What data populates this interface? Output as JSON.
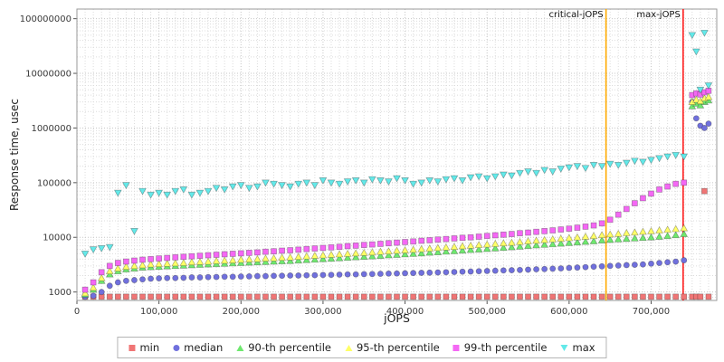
{
  "chart_data": {
    "type": "scatter",
    "title": "",
    "xlabel": "jOPS",
    "ylabel": "Response time, usec",
    "xlim": [
      0,
      780000
    ],
    "ylim": [
      700,
      150000000
    ],
    "x_ticks": [
      0,
      100000,
      200000,
      300000,
      400000,
      500000,
      600000,
      700000
    ],
    "x_tick_labels": [
      "0",
      "100,000",
      "200,000",
      "300,000",
      "400,000",
      "500,000",
      "600,000",
      "700,000"
    ],
    "y_ticks": [
      1000,
      10000,
      100000,
      1000000,
      10000000,
      100000000
    ],
    "y_tick_labels": [
      "1000",
      "10000",
      "100000",
      "1000000",
      "10000000",
      "100000000"
    ],
    "y_scale": "log",
    "grid": true,
    "legend_position": "bottom",
    "annotations": [
      {
        "label": "critical-jOPS",
        "x": 645000,
        "color": "#ffaa00"
      },
      {
        "label": "max-jOPS",
        "x": 739000,
        "color": "#ff1f1f"
      }
    ],
    "x": [
      10000,
      20000,
      30000,
      40000,
      50000,
      60000,
      70000,
      80000,
      90000,
      100000,
      110000,
      120000,
      130000,
      140000,
      150000,
      160000,
      170000,
      180000,
      190000,
      200000,
      210000,
      220000,
      230000,
      240000,
      250000,
      260000,
      270000,
      280000,
      290000,
      300000,
      310000,
      320000,
      330000,
      340000,
      350000,
      360000,
      370000,
      380000,
      390000,
      400000,
      410000,
      420000,
      430000,
      440000,
      450000,
      460000,
      470000,
      480000,
      490000,
      500000,
      510000,
      520000,
      530000,
      540000,
      550000,
      560000,
      570000,
      580000,
      590000,
      600000,
      610000,
      620000,
      630000,
      640000,
      650000,
      660000,
      670000,
      680000,
      690000,
      700000,
      710000,
      720000,
      730000,
      740000,
      750000,
      755000,
      760000,
      765000,
      770000
    ],
    "series": [
      {
        "name": "min",
        "marker": "square",
        "color": "#f07575",
        "values": [
          820,
          820,
          820,
          820,
          820,
          820,
          820,
          820,
          820,
          820,
          820,
          820,
          820,
          820,
          820,
          820,
          820,
          820,
          820,
          820,
          820,
          820,
          820,
          820,
          820,
          820,
          820,
          820,
          820,
          820,
          820,
          820,
          820,
          820,
          820,
          820,
          820,
          820,
          820,
          820,
          820,
          820,
          820,
          820,
          820,
          820,
          820,
          820,
          820,
          820,
          820,
          820,
          820,
          820,
          820,
          820,
          820,
          820,
          820,
          820,
          820,
          820,
          820,
          820,
          820,
          820,
          820,
          820,
          820,
          820,
          820,
          820,
          820,
          820,
          820,
          820,
          820,
          70000,
          820
        ]
      },
      {
        "name": "median",
        "marker": "circle",
        "color": "#7070dd",
        "values": [
          820,
          850,
          1000,
          1300,
          1500,
          1600,
          1650,
          1700,
          1750,
          1780,
          1800,
          1800,
          1820,
          1850,
          1850,
          1870,
          1880,
          1900,
          1900,
          1920,
          1930,
          1950,
          1950,
          1970,
          1980,
          2000,
          2000,
          2020,
          2030,
          2050,
          2060,
          2080,
          2100,
          2100,
          2120,
          2130,
          2150,
          2170,
          2180,
          2200,
          2220,
          2240,
          2260,
          2280,
          2300,
          2320,
          2350,
          2370,
          2400,
          2420,
          2450,
          2480,
          2500,
          2530,
          2560,
          2600,
          2630,
          2670,
          2700,
          2750,
          2800,
          2850,
          2900,
          2950,
          3000,
          3050,
          3100,
          3150,
          3200,
          3300,
          3400,
          3500,
          3600,
          3800,
          3000000,
          1500000,
          1100000,
          1000000,
          1200000
        ]
      },
      {
        "name": "90-th percentile",
        "marker": "triangle-up",
        "color": "#6ee86e",
        "values": [
          900,
          1100,
          1600,
          2100,
          2400,
          2600,
          2700,
          2800,
          2850,
          2900,
          2950,
          3000,
          3050,
          3100,
          3150,
          3200,
          3250,
          3300,
          3350,
          3400,
          3450,
          3500,
          3550,
          3600,
          3650,
          3700,
          3780,
          3850,
          3920,
          4000,
          4080,
          4160,
          4250,
          4330,
          4420,
          4500,
          4600,
          4700,
          4800,
          4900,
          5000,
          5100,
          5250,
          5350,
          5500,
          5600,
          5750,
          5900,
          6000,
          6150,
          6300,
          6450,
          6600,
          6800,
          7000,
          7150,
          7350,
          7500,
          7700,
          7900,
          8100,
          8300,
          8500,
          8800,
          9000,
          9200,
          9400,
          9600,
          9800,
          10000,
          10300,
          10600,
          11000,
          11500,
          2500000,
          2800000,
          2600000,
          3000000,
          3200000
        ]
      },
      {
        "name": "95-th percentile",
        "marker": "triangle-up",
        "color": "#ffff66",
        "values": [
          950,
          1200,
          1800,
          2400,
          2700,
          2900,
          3000,
          3100,
          3200,
          3250,
          3300,
          3350,
          3400,
          3500,
          3550,
          3600,
          3700,
          3750,
          3800,
          3900,
          3950,
          4000,
          4100,
          4150,
          4250,
          4300,
          4400,
          4500,
          4600,
          4700,
          4800,
          4900,
          5000,
          5100,
          5200,
          5300,
          5450,
          5550,
          5700,
          5800,
          5950,
          6100,
          6250,
          6400,
          6550,
          6700,
          6900,
          7050,
          7250,
          7400,
          7600,
          7800,
          8000,
          8250,
          8500,
          8700,
          8950,
          9200,
          9450,
          9700,
          10000,
          10300,
          10600,
          11000,
          11300,
          11600,
          12000,
          12300,
          12700,
          13000,
          13400,
          13800,
          14200,
          14700,
          3000000,
          3300000,
          3100000,
          3500000,
          3700000
        ]
      },
      {
        "name": "99-th percentile",
        "marker": "square",
        "color": "#f468f4",
        "values": [
          1100,
          1500,
          2300,
          3000,
          3400,
          3600,
          3750,
          3900,
          4000,
          4100,
          4200,
          4300,
          4400,
          4500,
          4600,
          4700,
          4800,
          4900,
          5000,
          5100,
          5200,
          5300,
          5450,
          5550,
          5700,
          5800,
          5950,
          6100,
          6250,
          6400,
          6550,
          6700,
          6900,
          7050,
          7250,
          7400,
          7600,
          7800,
          8000,
          8200,
          8400,
          8650,
          8850,
          9100,
          9300,
          9550,
          9800,
          10000,
          10300,
          10600,
          10900,
          11200,
          11500,
          11900,
          12200,
          12600,
          13000,
          13400,
          13900,
          14400,
          15000,
          15700,
          16500,
          18000,
          21000,
          26000,
          33000,
          42000,
          52000,
          63000,
          75000,
          85000,
          95000,
          100000,
          4000000,
          4300000,
          4100000,
          4500000,
          4800000
        ]
      },
      {
        "name": "max",
        "marker": "triangle-down",
        "color": "#63e9e9",
        "values": [
          5000,
          6000,
          6300,
          6600,
          65000,
          90000,
          13000,
          70000,
          60000,
          65000,
          60000,
          70000,
          75000,
          60000,
          65000,
          70000,
          80000,
          75000,
          85000,
          90000,
          80000,
          85000,
          100000,
          95000,
          90000,
          85000,
          95000,
          100000,
          90000,
          110000,
          100000,
          95000,
          105000,
          110000,
          100000,
          115000,
          110000,
          105000,
          120000,
          110000,
          95000,
          100000,
          110000,
          105000,
          115000,
          120000,
          110000,
          125000,
          130000,
          120000,
          130000,
          140000,
          135000,
          150000,
          160000,
          150000,
          170000,
          160000,
          180000,
          190000,
          200000,
          185000,
          210000,
          200000,
          220000,
          210000,
          230000,
          250000,
          240000,
          260000,
          280000,
          300000,
          320000,
          300000,
          50000000,
          25000000,
          5000000,
          55000000,
          6000000
        ]
      }
    ]
  }
}
